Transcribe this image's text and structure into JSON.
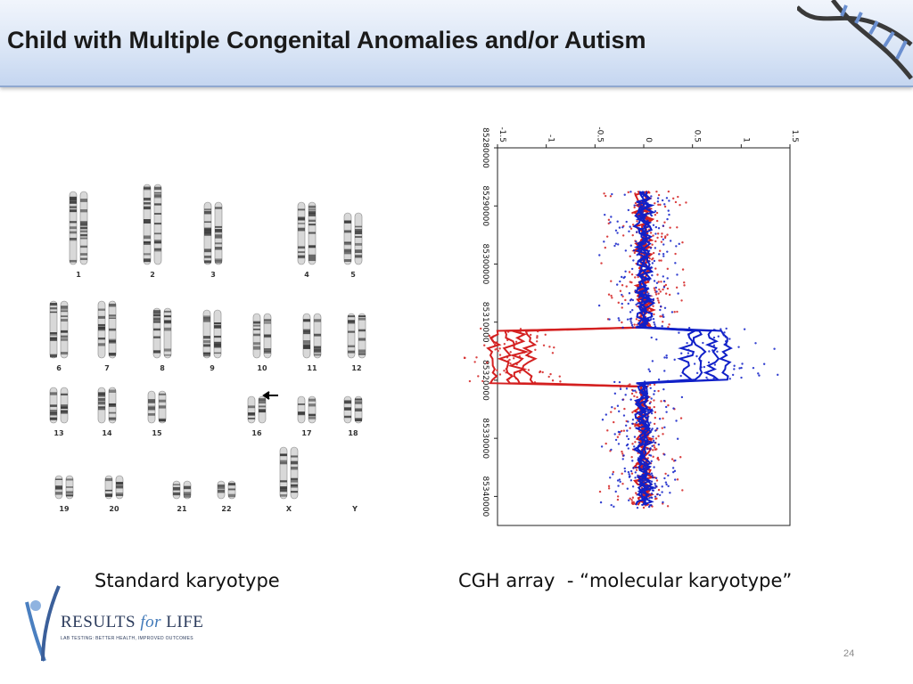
{
  "header": {
    "title": "Child with Multiple Congenital Anomalies and/or Autism"
  },
  "karyotype": {
    "chromosome_labels": [
      "1",
      "2",
      "3",
      "4",
      "5",
      "6",
      "7",
      "8",
      "9",
      "10",
      "11",
      "12",
      "13",
      "14",
      "15",
      "16",
      "17",
      "18",
      "19",
      "20",
      "21",
      "22",
      "X",
      "Y"
    ],
    "caption": "Standard karyotype"
  },
  "cgh": {
    "caption": "CGH array  - “molecular karyotype”"
  },
  "chart_data": {
    "type": "scatter",
    "y_ticks": [
      "-1.5",
      "-1",
      "-0.5",
      "0",
      "0.5",
      "1",
      "1.5"
    ],
    "x_ticks": [
      "85280000",
      "85290000",
      "85300000",
      "85310000",
      "85320000",
      "85330000",
      "85340000"
    ],
    "xlim": [
      85280000,
      85345000
    ],
    "ylim": [
      -1.5,
      1.5
    ],
    "series": [
      {
        "color": "#d42020",
        "deviation": {
          "start": 85311000,
          "end": 85320500,
          "value": -1.35
        }
      },
      {
        "color": "#1020c8",
        "deviation": {
          "start": 85311000,
          "end": 85320000,
          "value": 0.65
        }
      }
    ]
  },
  "logo": {
    "brand_1": "RESULTS ",
    "brand_for": "for",
    "brand_2": " LIFE",
    "tagline": "LAB TESTING: BETTER HEALTH, IMPROVED OUTCOMES"
  },
  "footer": {
    "page_number": "24"
  }
}
